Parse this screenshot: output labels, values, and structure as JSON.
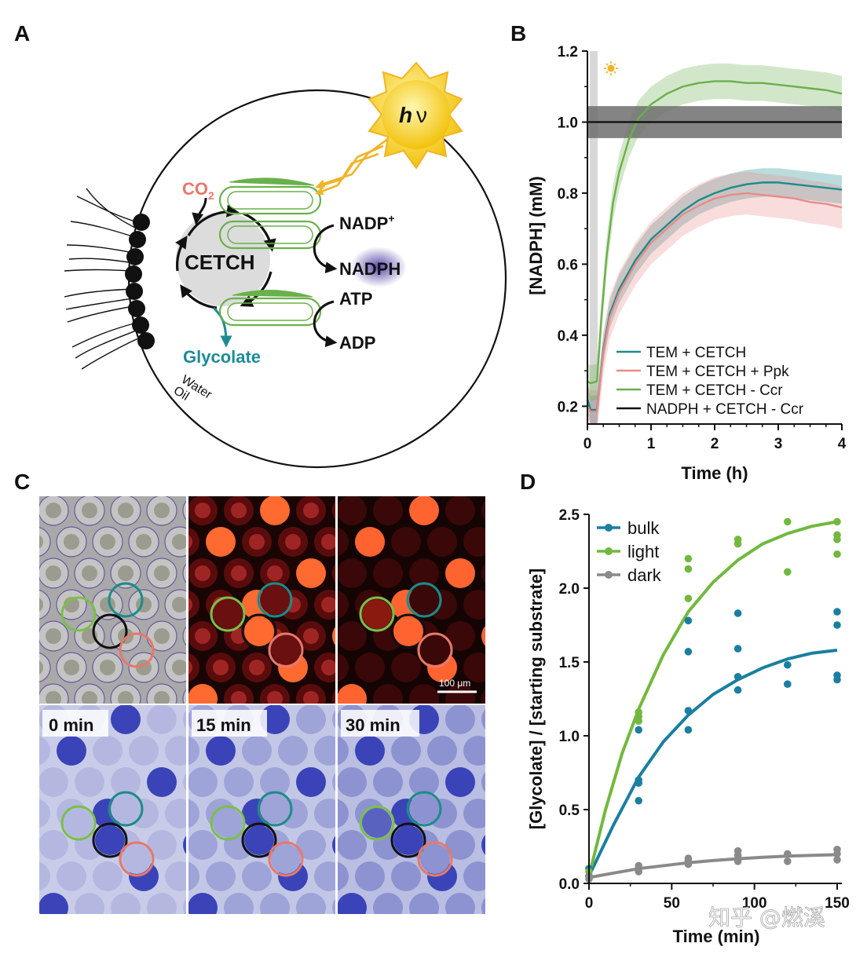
{
  "panels": {
    "A": "A",
    "B": "B",
    "C": "C",
    "D": "D"
  },
  "panel_a": {
    "hv_h": "h",
    "hv_nu": "ν",
    "co2_main": "CO",
    "co2_sub": "2",
    "cetch": "CETCH",
    "nadp_main": "NADP",
    "nadp_sup": "+",
    "nadph": "NADPH",
    "atp": "ATP",
    "adp": "ADP",
    "glycolate": "Glycolate",
    "water": "Water",
    "oil": "Oil",
    "colors": {
      "co2": "#e8786a",
      "glycolate": "#1d8b96",
      "membrane": "#6ab04c",
      "sun": "#f7d61c"
    }
  },
  "panel_c": {
    "scale_bar": "100 μm",
    "time_labels": [
      "0 min",
      "15 min",
      "30 min"
    ],
    "colors": {
      "green": "#7bbf4a",
      "teal": "#1d8b8b",
      "black": "#111111",
      "red": "#e8786a"
    }
  },
  "watermark": "知乎 @燃溪",
  "chart_data": [
    {
      "panel": "B",
      "type": "line",
      "xlabel": "Time (h)",
      "ylabel": "[NADPH] (mM)",
      "xlim": [
        0,
        4
      ],
      "ylim": [
        0.15,
        1.2
      ],
      "xticks": [
        0,
        1,
        2,
        3,
        4
      ],
      "yticks": [
        0.2,
        0.4,
        0.6,
        0.8,
        1.0,
        1.2
      ],
      "ytick_labels": [
        "0.2",
        "0.4",
        "0.6",
        "0.8",
        "1.0",
        "1.2"
      ],
      "legend_position": "bottom-right",
      "annotations": [
        "dark/light switch at t ≈ 0.15 h"
      ],
      "series": [
        {
          "name": "TEM + CETCH",
          "color": "#1d8b8b",
          "x": [
            0,
            0.05,
            0.15,
            0.25,
            0.35,
            0.5,
            0.75,
            1.0,
            1.25,
            1.5,
            1.75,
            2.0,
            2.25,
            2.5,
            2.75,
            3.0,
            3.25,
            3.5,
            3.75,
            4.0
          ],
          "y": [
            0.22,
            0.19,
            0.19,
            0.36,
            0.46,
            0.53,
            0.61,
            0.67,
            0.71,
            0.75,
            0.78,
            0.8,
            0.815,
            0.825,
            0.83,
            0.83,
            0.825,
            0.82,
            0.815,
            0.81
          ],
          "band": 0.04
        },
        {
          "name": "TEM + CETCH + Ppk",
          "color": "#ea8a8a",
          "x": [
            0,
            0.05,
            0.15,
            0.25,
            0.35,
            0.5,
            0.75,
            1.0,
            1.25,
            1.5,
            1.75,
            2.0,
            2.25,
            2.5,
            2.75,
            3.0,
            3.25,
            3.5,
            3.75,
            4.0
          ],
          "y": [
            0.2,
            0.185,
            0.185,
            0.35,
            0.45,
            0.52,
            0.6,
            0.66,
            0.7,
            0.74,
            0.765,
            0.785,
            0.795,
            0.8,
            0.795,
            0.79,
            0.785,
            0.775,
            0.77,
            0.76
          ],
          "band": 0.06
        },
        {
          "name": "TEM + CETCH - Ccr",
          "color": "#6ab04c",
          "x": [
            0,
            0.05,
            0.15,
            0.22,
            0.3,
            0.4,
            0.5,
            0.65,
            0.8,
            1.0,
            1.25,
            1.5,
            1.75,
            2.0,
            2.25,
            2.5,
            2.75,
            3.0,
            3.25,
            3.5,
            3.75,
            4.0
          ],
          "y": [
            0.27,
            0.265,
            0.27,
            0.45,
            0.62,
            0.77,
            0.86,
            0.95,
            1.01,
            1.05,
            1.08,
            1.1,
            1.11,
            1.115,
            1.115,
            1.11,
            1.11,
            1.105,
            1.1,
            1.095,
            1.09,
            1.08
          ],
          "band": 0.05
        },
        {
          "name": "NADPH + CETCH - Ccr",
          "color": "#111111",
          "x": [
            0,
            4.0
          ],
          "y": [
            1.0,
            1.0
          ],
          "band": 0.045
        }
      ]
    },
    {
      "panel": "D",
      "type": "scatter",
      "xlabel": "Time (min)",
      "ylabel": "[Glycolate] / [starting substrate]",
      "xlim": [
        0,
        150
      ],
      "ylim": [
        0,
        2.5
      ],
      "xticks": [
        0,
        50,
        100,
        150
      ],
      "yticks": [
        0.0,
        0.5,
        1.0,
        1.5,
        2.0,
        2.5
      ],
      "ytick_labels": [
        "0.0",
        "0.5",
        "1.0",
        "1.5",
        "2.0",
        "2.5"
      ],
      "legend_position": "top-left",
      "series": [
        {
          "name": "bulk",
          "color": "#1a7fa0",
          "points": [
            [
              0,
              0.05
            ],
            [
              0,
              0.1
            ],
            [
              30,
              0.56
            ],
            [
              30,
              0.68
            ],
            [
              30,
              0.7
            ],
            [
              30,
              1.04
            ],
            [
              60,
              1.04
            ],
            [
              60,
              1.17
            ],
            [
              60,
              1.57
            ],
            [
              60,
              1.78
            ],
            [
              90,
              1.31
            ],
            [
              90,
              1.4
            ],
            [
              90,
              1.59
            ],
            [
              90,
              1.83
            ],
            [
              120,
              1.35
            ],
            [
              120,
              1.48
            ],
            [
              150,
              1.38
            ],
            [
              150,
              1.41
            ],
            [
              150,
              1.75
            ],
            [
              150,
              1.84
            ]
          ],
          "fit": [
            [
              0,
              0.05
            ],
            [
              15,
              0.4
            ],
            [
              30,
              0.72
            ],
            [
              45,
              0.96
            ],
            [
              60,
              1.14
            ],
            [
              75,
              1.28
            ],
            [
              90,
              1.38
            ],
            [
              105,
              1.46
            ],
            [
              120,
              1.52
            ],
            [
              135,
              1.56
            ],
            [
              150,
              1.58
            ]
          ]
        },
        {
          "name": "light",
          "color": "#72b83e",
          "points": [
            [
              0,
              0.05
            ],
            [
              0,
              0.08
            ],
            [
              30,
              1.1
            ],
            [
              30,
              1.13
            ],
            [
              30,
              1.16
            ],
            [
              60,
              1.93
            ],
            [
              60,
              2.13
            ],
            [
              60,
              2.2
            ],
            [
              90,
              2.3
            ],
            [
              90,
              2.33
            ],
            [
              120,
              2.11
            ],
            [
              120,
              2.45
            ],
            [
              150,
              2.23
            ],
            [
              150,
              2.33
            ],
            [
              150,
              2.36
            ],
            [
              150,
              2.45
            ]
          ],
          "fit": [
            [
              0,
              0.05
            ],
            [
              10,
              0.5
            ],
            [
              20,
              0.88
            ],
            [
              30,
              1.18
            ],
            [
              45,
              1.55
            ],
            [
              60,
              1.84
            ],
            [
              75,
              2.04
            ],
            [
              90,
              2.19
            ],
            [
              105,
              2.3
            ],
            [
              120,
              2.37
            ],
            [
              135,
              2.42
            ],
            [
              150,
              2.45
            ]
          ]
        },
        {
          "name": "dark",
          "color": "#8a8a8a",
          "points": [
            [
              0,
              0.03
            ],
            [
              0,
              0.05
            ],
            [
              30,
              0.08
            ],
            [
              30,
              0.1
            ],
            [
              30,
              0.12
            ],
            [
              60,
              0.13
            ],
            [
              60,
              0.15
            ],
            [
              60,
              0.17
            ],
            [
              90,
              0.15
            ],
            [
              90,
              0.19
            ],
            [
              90,
              0.22
            ],
            [
              120,
              0.15
            ],
            [
              120,
              0.2
            ],
            [
              150,
              0.16
            ],
            [
              150,
              0.2
            ],
            [
              150,
              0.23
            ]
          ],
          "fit": [
            [
              0,
              0.04
            ],
            [
              15,
              0.07
            ],
            [
              30,
              0.1
            ],
            [
              45,
              0.12
            ],
            [
              60,
              0.14
            ],
            [
              75,
              0.155
            ],
            [
              90,
              0.167
            ],
            [
              105,
              0.177
            ],
            [
              120,
              0.185
            ],
            [
              135,
              0.19
            ],
            [
              150,
              0.195
            ]
          ]
        }
      ]
    }
  ]
}
